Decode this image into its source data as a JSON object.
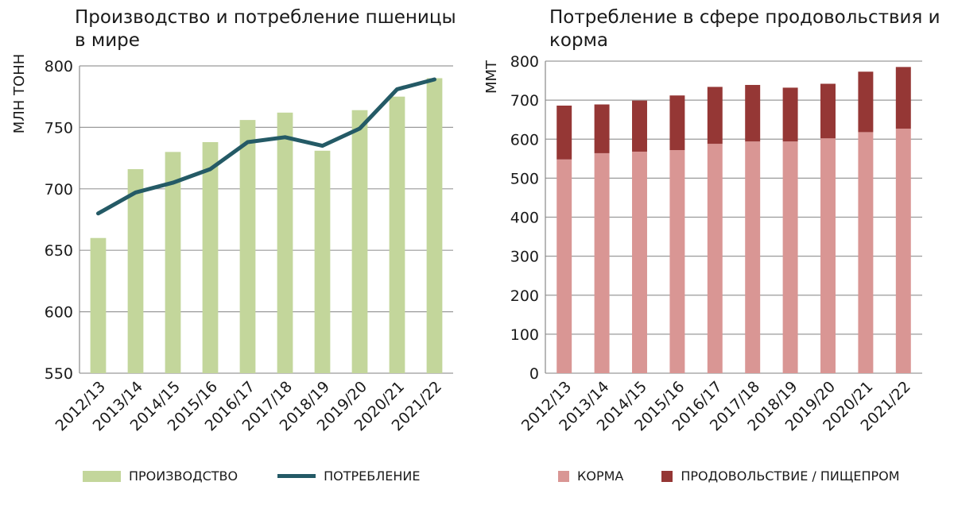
{
  "chart_data": [
    {
      "type": "bar+line",
      "title": "Производство и потребление пшеницы в мире",
      "ylabel": "МЛН ТОНН",
      "xlabel": "",
      "ylim": [
        550,
        800
      ],
      "yticks": [
        550,
        600,
        650,
        700,
        750,
        800
      ],
      "grid": true,
      "legend_position": "bottom",
      "categories": [
        "2012/13",
        "2013/14",
        "2014/15",
        "2015/16",
        "2016/17",
        "2017/18",
        "2018/19",
        "2019/20",
        "2020/21",
        "2021/22"
      ],
      "series": [
        {
          "name": "ПРОИЗВОДСТВО",
          "type": "bar",
          "color": "#c3d69b",
          "values": [
            660,
            716,
            730,
            738,
            756,
            762,
            731,
            764,
            775,
            790
          ]
        },
        {
          "name": "ПОТРЕБЛЕНИЕ",
          "type": "line",
          "color": "#245a66",
          "values": [
            680,
            697,
            705,
            716,
            738,
            742,
            735,
            749,
            781,
            789
          ]
        }
      ]
    },
    {
      "type": "bar",
      "stacked": true,
      "title": "Потребление в сфере продовольствия и корма",
      "ylabel": "ММТ",
      "xlabel": "",
      "ylim": [
        0,
        800
      ],
      "yticks": [
        0,
        100,
        200,
        300,
        400,
        500,
        600,
        700,
        800
      ],
      "grid": true,
      "legend_position": "bottom",
      "categories": [
        "2012/13",
        "2013/14",
        "2014/15",
        "2015/16",
        "2016/17",
        "2017/18",
        "2018/19",
        "2019/20",
        "2020/21",
        "2021/22"
      ],
      "series": [
        {
          "name": "КОРМА",
          "color": "#d99694",
          "values": [
            548,
            564,
            568,
            572,
            588,
            594,
            594,
            602,
            618,
            627
          ]
        },
        {
          "name": "ПРОДОВОЛЬСТВИЕ / ПИЩЕПРОМ",
          "color": "#953735",
          "values": [
            138,
            125,
            131,
            140,
            146,
            145,
            138,
            140,
            155,
            158
          ]
        }
      ]
    }
  ]
}
